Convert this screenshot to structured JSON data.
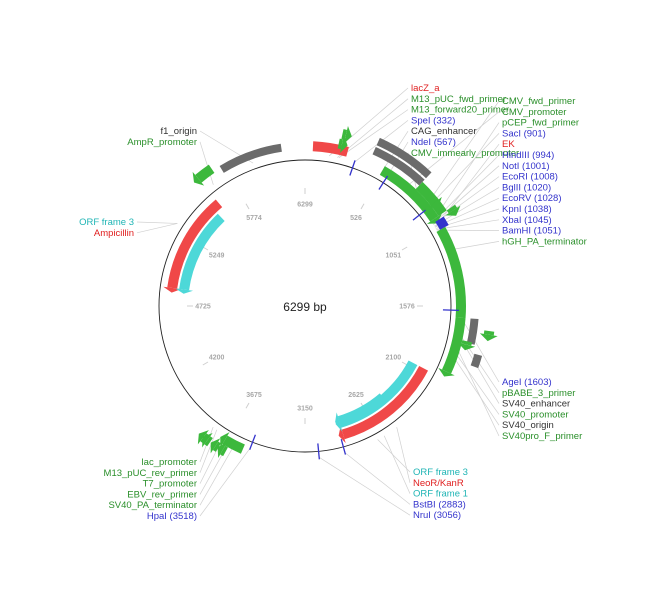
{
  "plasmid": {
    "total_label": "6299 bp",
    "total_bp": 6299
  },
  "colors": {
    "feature_green": "#3cb83c",
    "feature_red": "#f04848",
    "feature_cyan": "#4dd8d8",
    "feature_gray": "#6b6b6b",
    "site_blue": "#3333cc",
    "label_green": "#2a8f2a",
    "label_red": "#e02020",
    "label_cyan": "#20b5b5",
    "label_black": "#333333",
    "label_blue": "#3333cc"
  },
  "tick_labels": [
    "6299",
    "526",
    "1051",
    "1576",
    "2100",
    "2625",
    "3150",
    "3675",
    "4200",
    "4725",
    "5249",
    "5774"
  ],
  "features": [
    {
      "name": "lacZ_a",
      "start": 50,
      "end": 270,
      "ring": 0,
      "color": "red"
    },
    {
      "name": "M13_pUC_fwd_primer",
      "start": 205,
      "end": 225,
      "ring": 1,
      "color": "green",
      "arrow": true
    },
    {
      "name": "M13_forward20_primer",
      "start": 215,
      "end": 235,
      "ring": 2,
      "color": "green",
      "arrow": true
    },
    {
      "name": "CAG_enhancer",
      "start": 420,
      "end": 760,
      "ring": 2,
      "color": "gray"
    },
    {
      "name": "CMV_enhancer",
      "start": 420,
      "end": 760,
      "ring": 1,
      "color": "gray"
    },
    {
      "name": "CMV_immearly_promoter",
      "start": 760,
      "end": 980,
      "ring": 1,
      "color": "green"
    },
    {
      "name": "CMV_promoter",
      "start": 520,
      "end": 980,
      "ring": 0,
      "color": "green",
      "arrow": true
    },
    {
      "name": "CMV_fwd_primer",
      "start": 880,
      "end": 900,
      "ring": 1,
      "color": "green",
      "arrow": true
    },
    {
      "name": "pCEP_fwd_primer",
      "start": 980,
      "end": 1000,
      "ring": 2,
      "color": "green",
      "arrow": true
    },
    {
      "name": "EK",
      "start": 1000,
      "end": 1060,
      "ring": 0,
      "color": "blue_box"
    },
    {
      "name": "hGH_PA_terminator",
      "start": 1060,
      "end": 1650,
      "ring": 0,
      "color": "green"
    },
    {
      "name": "SV40_enhancer",
      "start": 1650,
      "end": 1800,
      "ring": 1,
      "color": "gray"
    },
    {
      "name": "SV40_origin",
      "start": 1850,
      "end": 1920,
      "ring": 2,
      "color": "gray"
    },
    {
      "name": "SV40_promoter",
      "start": 1650,
      "end": 2010,
      "ring": 0,
      "color": "green",
      "arrow": true
    },
    {
      "name": "pBABE_3_primer",
      "start": 1710,
      "end": 1730,
      "ring": 3,
      "color": "green",
      "arrow": true
    },
    {
      "name": "SV40pro_F_primer",
      "start": 1790,
      "end": 1810,
      "ring": 1,
      "color": "green",
      "arrow": true
    },
    {
      "name": "NeoR/KanR",
      "start": 2060,
      "end": 2860,
      "ring": 0,
      "color": "red",
      "arrow": true
    },
    {
      "name": "ORF frame 1",
      "start": 2060,
      "end": 2860,
      "ring": 1,
      "color": "cyan",
      "arrow": true
    },
    {
      "name": "ORF frame 3",
      "start": 2440,
      "end": 2860,
      "ring": 2,
      "color": "cyan",
      "arrow": true
    },
    {
      "name": "SV40_PA_terminator",
      "start": 3560,
      "end": 3690,
      "ring": 0,
      "color": "green",
      "arrow": true
    },
    {
      "name": "EBV_rev_primer",
      "start": 3650,
      "end": 3670,
      "ring": 1,
      "color": "green",
      "arrow": true
    },
    {
      "name": "T7_promoter",
      "start": 3700,
      "end": 3720,
      "ring": 1,
      "color": "green",
      "arrow": true
    },
    {
      "name": "M13_pUC_rev_primer",
      "start": 3760,
      "end": 3780,
      "ring": 1,
      "color": "green",
      "arrow": true
    },
    {
      "name": "lac_promoter",
      "start": 3790,
      "end": 3810,
      "ring": 1,
      "color": "green",
      "arrow": true
    },
    {
      "name": "Ampicillin",
      "start": 4860,
      "end": 5600,
      "ring": 0,
      "color": "red",
      "arrow": true,
      "reverse": true
    },
    {
      "name": "ORF frame 3",
      "start": 4860,
      "end": 5540,
      "ring": 1,
      "color": "cyan",
      "arrow": true,
      "reverse": true
    },
    {
      "name": "AmpR_promoter",
      "start": 5600,
      "end": 5700,
      "ring": 1,
      "color": "green",
      "arrow": true,
      "reverse": true
    },
    {
      "name": "f1_origin",
      "start": 5750,
      "end": 6150,
      "ring": 0,
      "color": "gray"
    }
  ],
  "sites": [
    {
      "name": "SpeI",
      "pos": 332
    },
    {
      "name": "NdeI",
      "pos": 567
    },
    {
      "name": "SacI",
      "pos": 901
    },
    {
      "name": "AgeI",
      "pos": 1603
    },
    {
      "name": "BstBI",
      "pos": 2883
    },
    {
      "name": "NruI",
      "pos": 3056
    },
    {
      "name": "HpaI",
      "pos": 3518
    }
  ],
  "labels_top": [
    {
      "text": "lacZ_a",
      "color": "red"
    },
    {
      "text": "M13_pUC_fwd_primer",
      "color": "green"
    },
    {
      "text": "M13_forward20_primer",
      "color": "green"
    },
    {
      "text": "SpeI (332)",
      "color": "blue"
    },
    {
      "text": "CAG_enhancer",
      "color": "black"
    },
    {
      "text": "NdeI (567)",
      "color": "blue"
    },
    {
      "text": "CMV_immearly_promoter",
      "color": "green"
    }
  ],
  "labels_top_right": [
    {
      "text": "CMV_fwd_primer",
      "color": "green"
    },
    {
      "text": "CMV_promoter",
      "color": "green"
    },
    {
      "text": "pCEP_fwd_primer",
      "color": "green"
    },
    {
      "text": "SacI (901)",
      "color": "blue"
    },
    {
      "text": "EK",
      "color": "red"
    },
    {
      "text": "HindIII (994)",
      "color": "blue"
    },
    {
      "text": "NotI (1001)",
      "color": "blue"
    },
    {
      "text": "EcoRI (1008)",
      "color": "blue"
    },
    {
      "text": "BglII (1020)",
      "color": "blue"
    },
    {
      "text": "EcoRV (1028)",
      "color": "blue"
    },
    {
      "text": "KpnI (1038)",
      "color": "blue"
    },
    {
      "text": "XbaI (1045)",
      "color": "blue"
    },
    {
      "text": "BamHI (1051)",
      "color": "blue"
    },
    {
      "text": "hGH_PA_terminator",
      "color": "green"
    }
  ],
  "labels_right": [
    {
      "text": "AgeI (1603)",
      "color": "blue"
    },
    {
      "text": "pBABE_3_primer",
      "color": "green"
    },
    {
      "text": "SV40_enhancer",
      "color": "black"
    },
    {
      "text": "SV40_promoter",
      "color": "green"
    },
    {
      "text": "SV40_origin",
      "color": "black"
    },
    {
      "text": "SV40pro_F_primer",
      "color": "green"
    }
  ],
  "labels_bottom_right": [
    {
      "text": "ORF frame 3",
      "color": "cyan"
    },
    {
      "text": "NeoR/KanR",
      "color": "red"
    },
    {
      "text": "ORF frame 1",
      "color": "cyan"
    },
    {
      "text": "BstBI (2883)",
      "color": "blue"
    },
    {
      "text": "NruI (3056)",
      "color": "blue"
    }
  ],
  "labels_bottom_left": [
    {
      "text": "lac_promoter",
      "color": "green"
    },
    {
      "text": "M13_pUC_rev_primer",
      "color": "green"
    },
    {
      "text": "T7_promoter",
      "color": "green"
    },
    {
      "text": "EBV_rev_primer",
      "color": "green"
    },
    {
      "text": "SV40_PA_terminator",
      "color": "green"
    },
    {
      "text": "HpaI (3518)",
      "color": "blue"
    }
  ],
  "labels_top_left": [
    {
      "text": "f1_origin",
      "color": "black"
    },
    {
      "text": "AmpR_promoter",
      "color": "green"
    }
  ],
  "labels_left": [
    {
      "text": "ORF frame 3",
      "color": "cyan"
    },
    {
      "text": "Ampicillin",
      "color": "red"
    }
  ]
}
